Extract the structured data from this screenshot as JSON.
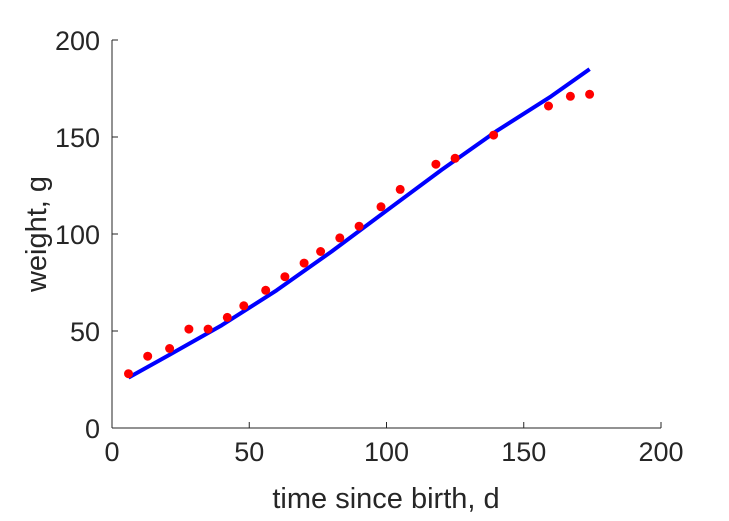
{
  "chart_data": {
    "type": "scatter",
    "title": "",
    "xlabel": "time since birth, d",
    "ylabel": "weight, g",
    "xlim": [
      0,
      200
    ],
    "ylim": [
      0,
      200
    ],
    "xticks": [
      "0",
      "50",
      "100",
      "150",
      "200"
    ],
    "yticks": [
      "0",
      "50",
      "100",
      "150",
      "200"
    ],
    "grid": false,
    "box": "open",
    "series": [
      {
        "kind": "points",
        "color": "#ff0000",
        "x": [
          6,
          13,
          21,
          28,
          35,
          42,
          48,
          56,
          63,
          70,
          76,
          83,
          90,
          98,
          105,
          118,
          125,
          139,
          159,
          167,
          174
        ],
        "y": [
          28,
          37,
          41,
          51,
          51,
          57,
          63,
          71,
          78,
          85,
          91,
          98,
          104,
          114,
          123,
          136,
          139,
          151,
          166,
          171,
          172
        ]
      },
      {
        "kind": "line",
        "color": "#0000ff",
        "x": [
          6,
          20,
          40,
          60,
          80,
          100,
          120,
          140,
          160,
          174
        ],
        "y": [
          26,
          37,
          53,
          71,
          91,
          112,
          133,
          153,
          171,
          185
        ]
      }
    ]
  }
}
